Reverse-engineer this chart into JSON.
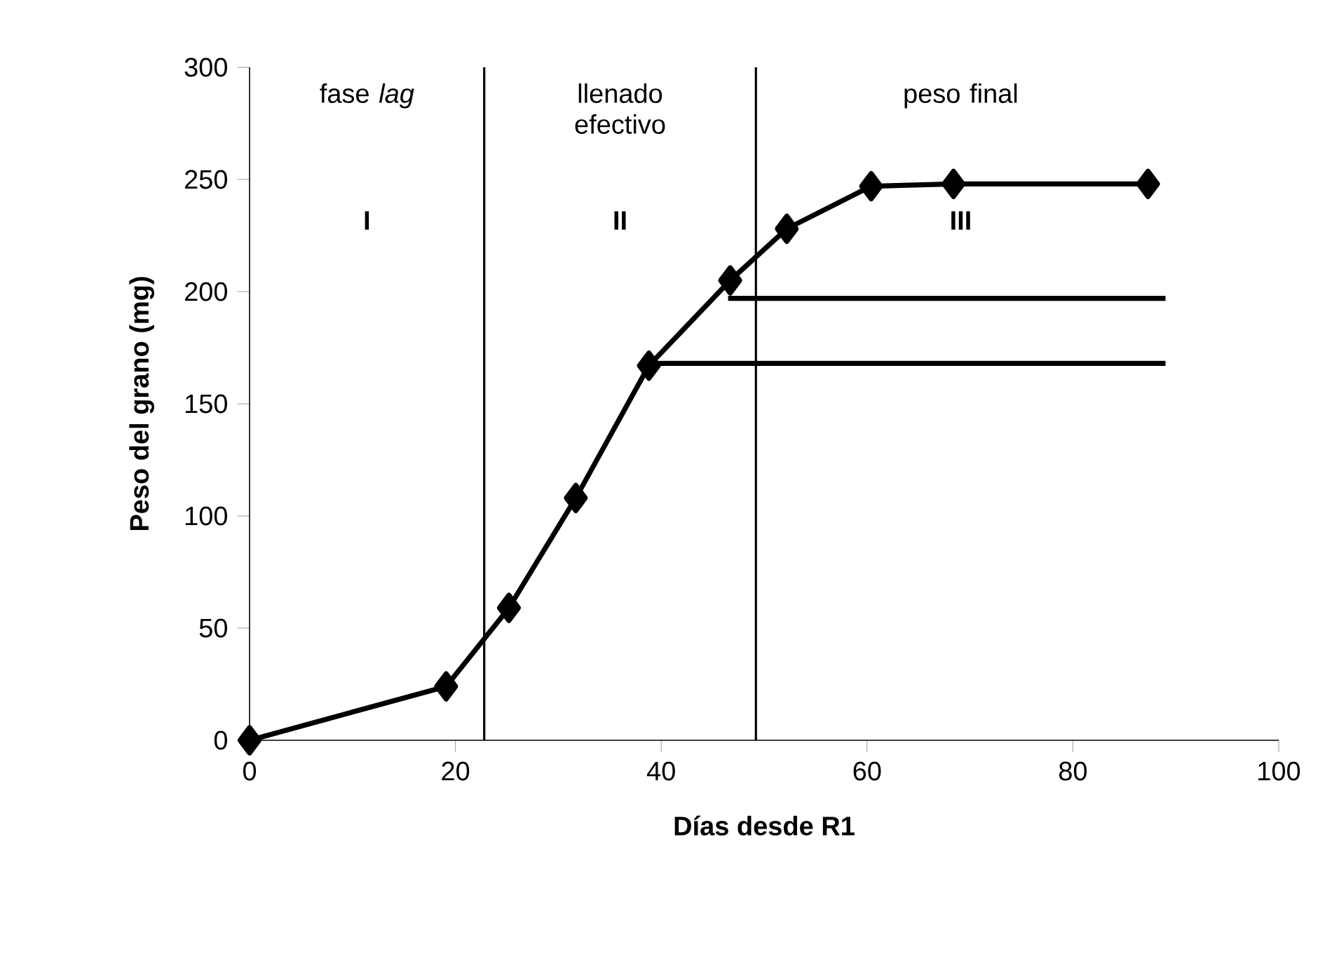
{
  "chart_data": {
    "type": "line",
    "xlabel": "Días desde R1",
    "ylabel": "Peso del grano (mg)",
    "xlim": [
      0,
      100
    ],
    "xticks": [
      0,
      20,
      40,
      60,
      80,
      100
    ],
    "ylim": [
      0,
      300
    ],
    "yticks": [
      0,
      50,
      100,
      150,
      200,
      250,
      300
    ],
    "x": [
      0,
      19.1,
      25.2,
      31.7,
      38.8,
      46.7,
      52.2,
      60.4,
      68.4,
      87.3
    ],
    "series": [
      {
        "color": "#000000",
        "marker": "diamond",
        "values": [
          0,
          24,
          59,
          108,
          167,
          205,
          228,
          247,
          248,
          248
        ]
      },
      {
        "color": "#000000",
        "marker": "none",
        "x": [
          46.5,
          89
        ],
        "values": [
          197,
          197
        ]
      },
      {
        "color": "#000000",
        "marker": "none",
        "x": [
          39.5,
          89
        ],
        "values": [
          168,
          168
        ]
      }
    ],
    "ref_lines": [
      {
        "axis": "x",
        "value": 22.8,
        "color": "#000000"
      },
      {
        "axis": "x",
        "value": 49.2,
        "color": "#000000"
      }
    ],
    "annotations": [
      "fase *lag*",
      "llenado efectivo",
      "peso final",
      "I",
      "II",
      "III"
    ],
    "grid": false
  }
}
